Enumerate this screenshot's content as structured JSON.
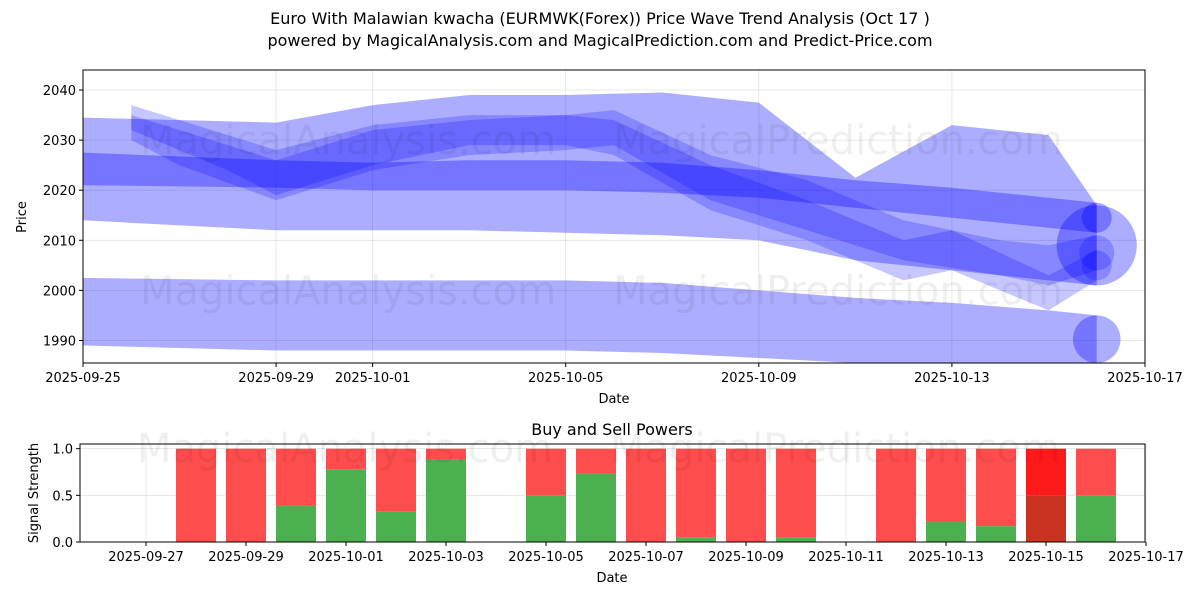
{
  "title_line1": "Euro With Malawian kwacha (EURMWK(Forex)) Price Wave Trend Analysis (Oct 17 )",
  "title_line2": "powered by MagicalAnalysis.com and MagicalPrediction.com and Predict-Price.com",
  "watermarks": [
    "MagicalAnalysis.com",
    "MagicalPrediction.com"
  ],
  "colors": {
    "band": "#0000ff",
    "buy": "#4caf50",
    "sell": "#ff4d4d",
    "sell_strong": "#ff1a1a",
    "buy_strong": "#c8321e"
  },
  "chart_data": [
    {
      "type": "area",
      "xlabel": "Date",
      "ylabel": "Price",
      "x_ticks": [
        "2025-09-25",
        "2025-09-29",
        "2025-10-01",
        "2025-10-05",
        "2025-10-09",
        "2025-10-13",
        "2025-10-17"
      ],
      "y_ticks": [
        1990,
        2000,
        2010,
        2020,
        2030,
        2040
      ],
      "xlim": [
        "2025-09-25",
        "2025-10-17"
      ],
      "ylim": [
        1985.5,
        2044
      ],
      "grid": true,
      "series": [
        {
          "x": [
            "2025-09-25",
            "2025-09-29",
            "2025-10-01",
            "2025-10-03",
            "2025-10-05",
            "2025-10-07",
            "2025-10-09",
            "2025-10-11",
            "2025-10-13",
            "2025-10-15",
            "2025-10-16"
          ],
          "upper": [
            2002.5,
            2002,
            2002,
            2002,
            2002,
            2001.5,
            2000,
            1998.5,
            1997.5,
            1996,
            1995
          ],
          "lower": [
            1989,
            1988,
            1988,
            1988,
            1988,
            1987.5,
            1986.5,
            1985.5,
            1985.5,
            1985.5,
            1985.5
          ]
        },
        {
          "x": [
            "2025-09-25",
            "2025-09-29",
            "2025-10-01",
            "2025-10-03",
            "2025-10-05",
            "2025-10-07",
            "2025-10-09",
            "2025-10-11",
            "2025-10-13",
            "2025-10-15",
            "2025-10-16"
          ],
          "upper": [
            2034.5,
            2033.5,
            2037,
            2039,
            2039,
            2039.5,
            2037.5,
            2022.5,
            2033,
            2031,
            2017
          ],
          "lower": [
            2014,
            2012,
            2012,
            2012,
            2011.5,
            2011,
            2010,
            2006,
            2004,
            2002,
            2001
          ]
        },
        {
          "x": [
            "2025-09-25",
            "2025-09-29",
            "2025-10-01",
            "2025-10-03",
            "2025-10-05",
            "2025-10-07",
            "2025-10-09",
            "2025-10-11",
            "2025-10-13",
            "2025-10-15",
            "2025-10-16"
          ],
          "upper": [
            2027.5,
            2026,
            2025.5,
            2026,
            2026,
            2025.5,
            2024,
            2022,
            2020.5,
            2018.5,
            2017.5
          ],
          "lower": [
            2021,
            2020.5,
            2020,
            2020,
            2020,
            2019.5,
            2018.5,
            2016.5,
            2014.5,
            2012.5,
            2011.5
          ]
        },
        {
          "x": [
            "2025-09-26",
            "2025-09-27",
            "2025-09-29",
            "2025-10-01",
            "2025-10-03",
            "2025-10-05",
            "2025-10-06",
            "2025-10-08",
            "2025-10-10",
            "2025-10-12",
            "2025-10-14",
            "2025-10-15",
            "2025-10-16"
          ],
          "upper": [
            2035,
            2032,
            2026,
            2032,
            2034,
            2035,
            2036,
            2027,
            2022,
            2014,
            2010,
            2009,
            2011
          ],
          "lower": [
            2030,
            2025,
            2018,
            2024,
            2027,
            2028,
            2029,
            2018,
            2012,
            2006,
            2003,
            2001,
            2004
          ]
        },
        {
          "x": [
            "2025-09-26",
            "2025-09-28",
            "2025-09-29",
            "2025-10-01",
            "2025-10-03",
            "2025-10-05",
            "2025-10-06",
            "2025-10-08",
            "2025-10-10",
            "2025-10-12",
            "2025-10-13",
            "2025-10-15",
            "2025-10-16"
          ],
          "upper": [
            2037,
            2031,
            2028,
            2033,
            2035,
            2035,
            2034,
            2025,
            2018,
            2010,
            2012,
            2003,
            2008
          ],
          "lower": [
            2032,
            2024,
            2019,
            2025,
            2029,
            2029,
            2027,
            2016,
            2010,
            2002,
            2004,
            1996,
            2002
          ]
        }
      ]
    },
    {
      "type": "bar",
      "title": "Buy and Sell Powers",
      "xlabel": "Date",
      "ylabel": "Signal Strength",
      "x_ticks": [
        "2025-09-27",
        "2025-09-29",
        "2025-10-01",
        "2025-10-03",
        "2025-10-05",
        "2025-10-07",
        "2025-10-09",
        "2025-10-11",
        "2025-10-13",
        "2025-10-15",
        "2025-10-17"
      ],
      "y_ticks": [
        "0.0",
        "0.5",
        "1.0"
      ],
      "ylim": [
        0,
        1.05
      ],
      "categories": [
        "2025-09-28",
        "2025-09-29",
        "2025-09-30",
        "2025-10-01",
        "2025-10-02",
        "2025-10-03",
        "2025-10-05",
        "2025-10-06",
        "2025-10-07",
        "2025-10-08",
        "2025-10-09",
        "2025-10-10",
        "2025-10-12",
        "2025-10-13",
        "2025-10-14",
        "2025-10-15",
        "2025-10-16"
      ],
      "series": [
        {
          "name": "Buy",
          "values": [
            0,
            0,
            0.39,
            0.78,
            0.33,
            0.88,
            0.5,
            0.73,
            0,
            0.05,
            0,
            0.05,
            0,
            0.22,
            0.17,
            0.5,
            0.5
          ]
        },
        {
          "name": "Sell",
          "values": [
            1,
            1,
            0.61,
            0.22,
            0.67,
            0.12,
            0.5,
            0.27,
            1,
            0.95,
            1,
            0.95,
            1,
            0.78,
            0.83,
            0.5,
            0.5
          ]
        }
      ],
      "highlight": "2025-10-15"
    }
  ]
}
